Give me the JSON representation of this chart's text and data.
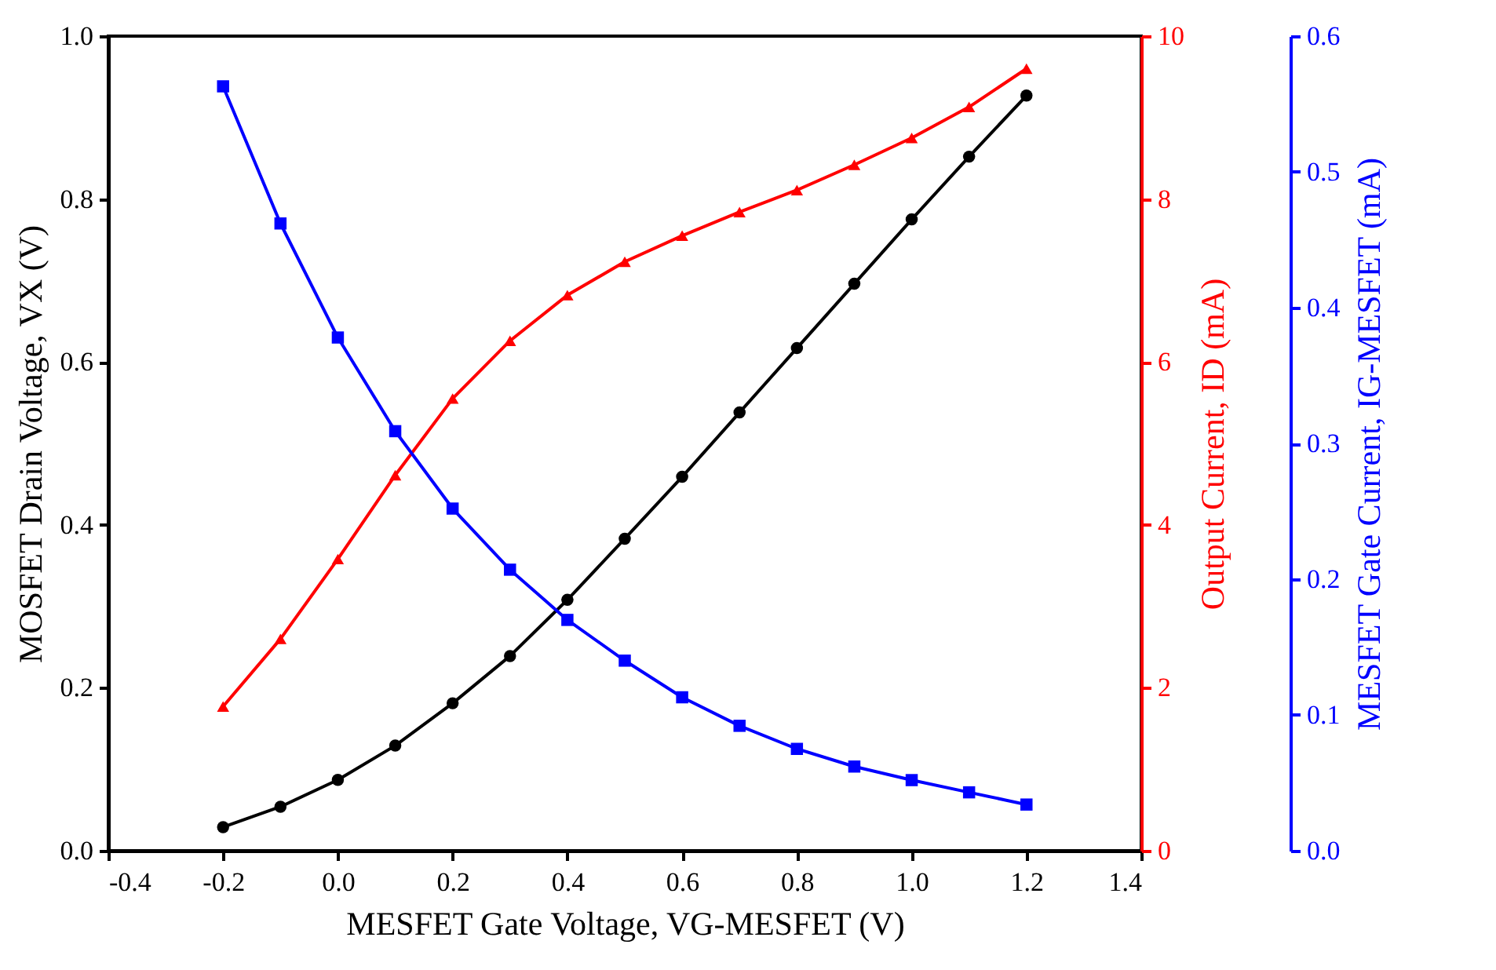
{
  "chart_data": {
    "type": "line",
    "xlabel": "MESFET Gate Voltage, VG-MESFET (V)",
    "ylabel": "MOSFET Drain Voltage, VX (V)",
    "y2label": "Output Current, ID (mA)",
    "y3label": "MESFET Gate Current, IG-MESFET (mA)",
    "x": [
      -0.2,
      -0.1,
      0.0,
      0.1,
      0.2,
      0.3,
      0.4,
      0.5,
      0.6,
      0.7,
      0.8,
      0.9,
      1.0,
      1.1,
      1.2
    ],
    "series": [
      {
        "color": "#000000",
        "marker": "circle",
        "values": [
          0.029,
          0.054,
          0.087,
          0.129,
          0.181,
          0.239,
          0.308,
          0.383,
          0.459,
          0.538,
          0.617,
          0.696,
          0.775,
          0.852,
          0.927
        ]
      },
      {
        "color": "#ff0000",
        "marker": "triangle",
        "axis": "y2",
        "values": [
          1.77,
          2.6,
          3.58,
          4.61,
          5.55,
          6.26,
          6.82,
          7.23,
          7.55,
          7.84,
          8.11,
          8.42,
          8.75,
          9.13,
          9.6
        ]
      },
      {
        "color": "#0000ff",
        "marker": "square",
        "axis": "y3",
        "values": [
          0.563,
          0.462,
          0.378,
          0.309,
          0.252,
          0.207,
          0.17,
          0.14,
          0.113,
          0.092,
          0.075,
          0.062,
          0.052,
          0.043,
          0.034
        ]
      }
    ],
    "xlim": [
      -0.4,
      1.4
    ],
    "xticks": [
      -0.4,
      -0.2,
      {
        "value": 0,
        "label": "0.0"
      },
      0.2,
      0.4,
      0.6,
      0.8,
      {
        "value": 1,
        "label": "1.0"
      },
      1.2,
      1.4
    ],
    "ylim": [
      0,
      1
    ],
    "yticks": [
      {
        "value": 0,
        "label": "0.0"
      },
      0.2,
      0.4,
      0.6,
      0.8,
      {
        "value": 1,
        "label": "1.0"
      }
    ],
    "y2lim": [
      0,
      10
    ],
    "y2ticks": [
      0,
      2,
      4,
      6,
      8,
      10
    ],
    "y3lim": [
      0,
      0.6
    ],
    "y3ticks": [
      {
        "value": 0,
        "label": "0.0"
      },
      0.1,
      0.2,
      0.3,
      0.4,
      0.5,
      0.6
    ],
    "grid": false,
    "line_style": "solid"
  }
}
